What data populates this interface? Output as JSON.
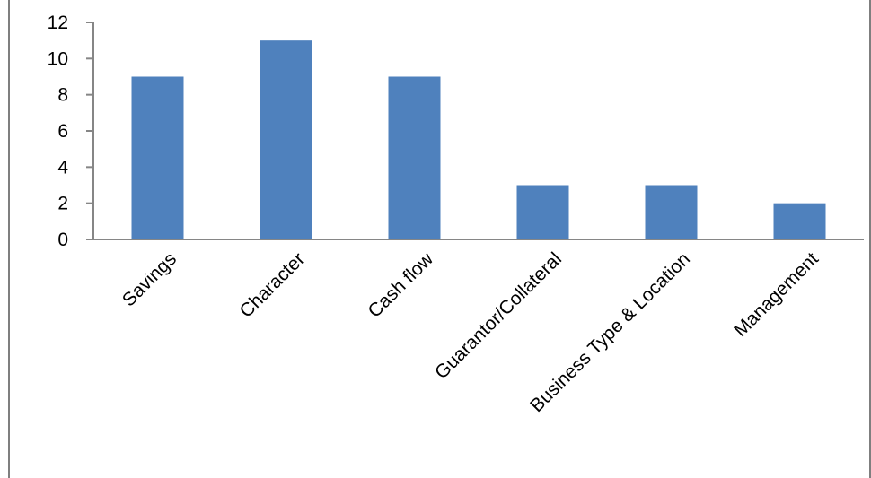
{
  "chart_data": {
    "type": "bar",
    "categories": [
      "Savings",
      "Character",
      "Cash flow",
      "Guarantor/Collateral",
      "Business Type & Location",
      "Management"
    ],
    "values": [
      9,
      11,
      9,
      3,
      3,
      2
    ],
    "ylim": [
      0,
      12
    ],
    "yticks": [
      "0",
      "2",
      "4",
      "6",
      "8",
      "10",
      "12"
    ],
    "grid": false,
    "legend": "none",
    "bar_color": "#4f81bd",
    "axis_color": "#868686"
  }
}
